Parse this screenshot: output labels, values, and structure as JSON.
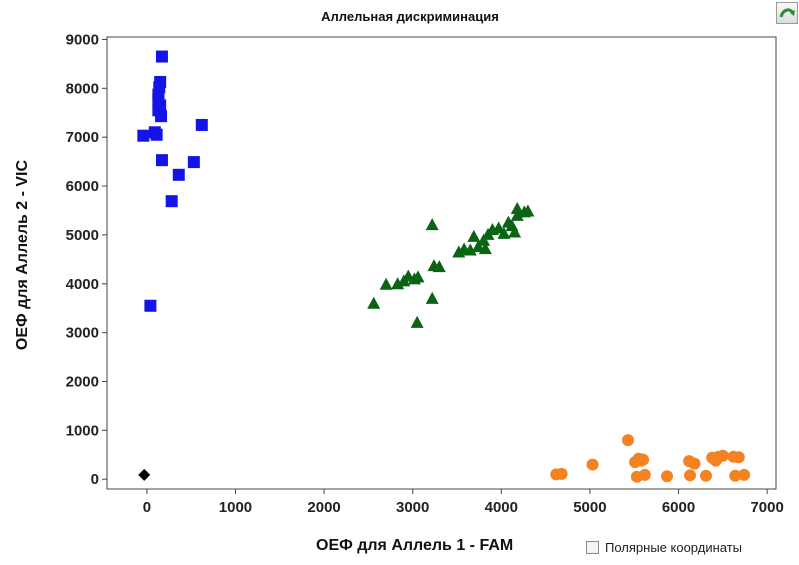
{
  "chart_data": {
    "type": "scatter",
    "title": "Аллельная дискриминация",
    "xlabel": "ОЕФ для Аллель 1 - FAM",
    "ylabel": "ОЕФ для Аллель 2 - VIC",
    "xlim": [
      -450,
      7100
    ],
    "ylim": [
      -200,
      9050
    ],
    "xticks": [
      0,
      1000,
      2000,
      3000,
      4000,
      5000,
      6000,
      7000
    ],
    "yticks": [
      0,
      1000,
      2000,
      3000,
      4000,
      5000,
      6000,
      7000,
      8000,
      9000
    ],
    "grid": false,
    "series": [
      {
        "marker": "square",
        "color": "#1414e6",
        "points": [
          [
            170,
            8650
          ],
          [
            150,
            8130
          ],
          [
            140,
            8020
          ],
          [
            130,
            7870
          ],
          [
            130,
            7760
          ],
          [
            150,
            7650
          ],
          [
            130,
            7550
          ],
          [
            160,
            7430
          ],
          [
            90,
            7100
          ],
          [
            110,
            7050
          ],
          [
            -40,
            7030
          ],
          [
            620,
            7250
          ],
          [
            170,
            6530
          ],
          [
            530,
            6490
          ],
          [
            360,
            6230
          ],
          [
            280,
            5690
          ],
          [
            40,
            3550
          ]
        ]
      },
      {
        "marker": "triangle",
        "color": "#0a6414",
        "points": [
          [
            2560,
            3590
          ],
          [
            2700,
            3980
          ],
          [
            2830,
            3990
          ],
          [
            2900,
            4050
          ],
          [
            2950,
            4150
          ],
          [
            3020,
            4090
          ],
          [
            3060,
            4130
          ],
          [
            3050,
            3200
          ],
          [
            3220,
            3690
          ],
          [
            3220,
            5200
          ],
          [
            3240,
            4360
          ],
          [
            3300,
            4340
          ],
          [
            3520,
            4640
          ],
          [
            3580,
            4700
          ],
          [
            3650,
            4680
          ],
          [
            3690,
            4960
          ],
          [
            3740,
            4750
          ],
          [
            3800,
            4880
          ],
          [
            3820,
            4710
          ],
          [
            3850,
            5000
          ],
          [
            3900,
            5100
          ],
          [
            3970,
            5130
          ],
          [
            4030,
            5020
          ],
          [
            4080,
            5250
          ],
          [
            4120,
            5180
          ],
          [
            4150,
            5050
          ],
          [
            4180,
            5390
          ],
          [
            4180,
            5530
          ],
          [
            4260,
            5460
          ],
          [
            4300,
            5480
          ]
        ]
      },
      {
        "marker": "circle",
        "color": "#f58220",
        "points": [
          [
            4620,
            100
          ],
          [
            4680,
            110
          ],
          [
            5030,
            300
          ],
          [
            5430,
            800
          ],
          [
            5510,
            350
          ],
          [
            5530,
            50
          ],
          [
            5550,
            420
          ],
          [
            5580,
            380
          ],
          [
            5600,
            400
          ],
          [
            5620,
            90
          ],
          [
            5870,
            60
          ],
          [
            6120,
            370
          ],
          [
            6130,
            80
          ],
          [
            6180,
            320
          ],
          [
            6310,
            70
          ],
          [
            6380,
            440
          ],
          [
            6420,
            380
          ],
          [
            6450,
            460
          ],
          [
            6500,
            480
          ],
          [
            6620,
            460
          ],
          [
            6640,
            70
          ],
          [
            6680,
            450
          ],
          [
            6740,
            90
          ]
        ]
      },
      {
        "marker": "diamond",
        "color": "#000000",
        "points": [
          [
            -30,
            90
          ]
        ]
      }
    ]
  },
  "ui": {
    "polar_label": "Полярные координаты",
    "polar_checked": false,
    "corner_icon": "refresh-arrow-icon"
  }
}
